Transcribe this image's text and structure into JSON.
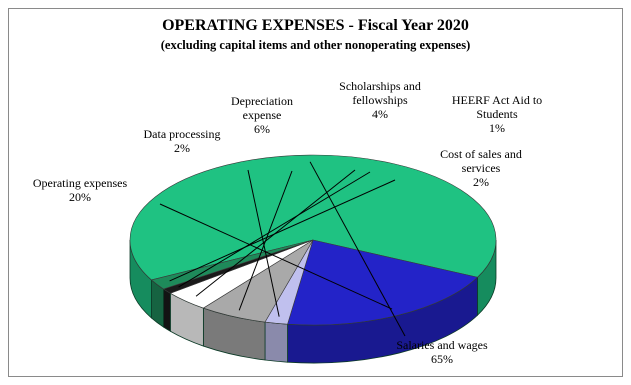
{
  "chart_data": {
    "type": "pie",
    "three_d": true,
    "title": "OPERATING EXPENSES - Fiscal Year 2020",
    "subtitle": "(excluding capital items and other nonoperating expenses)",
    "legend": "none",
    "slices": [
      {
        "label_lines": [
          "Salaries and wages"
        ],
        "value_text": "65%",
        "value": 65,
        "color": "#1fc282"
      },
      {
        "label_lines": [
          "Operating expenses"
        ],
        "value_text": "20%",
        "value": 20,
        "color": "#2323c8"
      },
      {
        "label_lines": [
          "Data processing"
        ],
        "value_text": "2%",
        "value": 2,
        "color": "#c0c0ee"
      },
      {
        "label_lines": [
          "Depreciation",
          "expense"
        ],
        "value_text": "6%",
        "value": 6,
        "color": "#a9a9a9"
      },
      {
        "label_lines": [
          "Scholarships and",
          "fellowships"
        ],
        "value_text": "4%",
        "value": 4,
        "color": "#ffffff"
      },
      {
        "label_lines": [
          "HEERF Act Aid to",
          "Students"
        ],
        "value_text": "1%",
        "value": 1,
        "color": "#1a1a1a"
      },
      {
        "label_lines": [
          "Cost of sales and",
          "services"
        ],
        "value_text": "2%",
        "value": 2,
        "color": "#1e8a5a"
      }
    ]
  }
}
